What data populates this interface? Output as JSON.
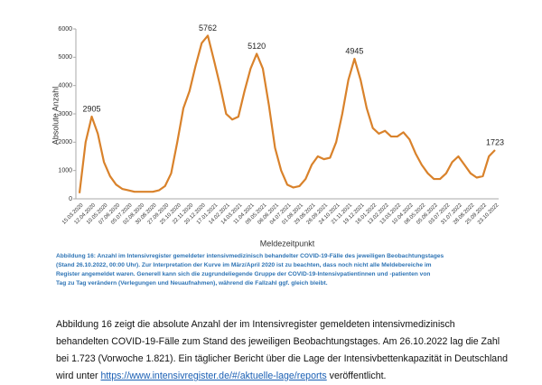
{
  "chart_data": {
    "type": "line",
    "y_label": "Absolute Anzahl",
    "x_label": "Meldezeitpunkt",
    "categories": [
      "15.03.2020",
      null,
      "12.04.2020",
      null,
      "10.05.2020",
      null,
      "07.06.2020",
      null,
      "05.07.2020",
      null,
      "02.08.2020",
      null,
      "30.08.2020",
      null,
      "27.09.2020",
      null,
      "25.10.2020",
      null,
      "22.11.2020",
      null,
      "20.12.2020",
      null,
      "17.01.2021",
      null,
      "14.02.2021",
      null,
      "14.03.2021",
      null,
      "11.04.2021",
      null,
      "09.05.2021",
      null,
      "06.06.2021",
      null,
      "04.07.2021",
      null,
      "01.08.2021",
      null,
      "29.08.2021",
      null,
      "26.09.2021",
      null,
      "24.10.2021",
      null,
      "21.11.2021",
      null,
      "19.12.2021",
      null,
      "16.01.2022",
      null,
      "13.02.2022",
      null,
      "13.03.2022",
      null,
      "10.04.2022",
      null,
      "08.05.2022",
      null,
      "05.06.2022",
      null,
      "03.07.2022",
      null,
      "31.07.2022",
      null,
      "28.08.2022",
      null,
      "25.09.2022",
      null,
      "23.10.2022"
    ],
    "values": [
      200,
      2000,
      2905,
      2300,
      1300,
      800,
      500,
      350,
      300,
      250,
      250,
      250,
      250,
      300,
      450,
      900,
      2000,
      3200,
      3800,
      4700,
      5500,
      5762,
      4900,
      4000,
      3000,
      2800,
      2900,
      3800,
      4600,
      5120,
      4600,
      3300,
      1800,
      1000,
      500,
      400,
      450,
      700,
      1200,
      1500,
      1400,
      1450,
      2000,
      3000,
      4200,
      4945,
      4200,
      3200,
      2500,
      2300,
      2400,
      2200,
      2200,
      2350,
      2100,
      1600,
      1200,
      900,
      700,
      700,
      900,
      1300,
      1500,
      1200,
      900,
      750,
      800,
      1500,
      1723
    ],
    "value_labels": [
      null,
      null,
      "2905",
      null,
      null,
      null,
      null,
      null,
      null,
      null,
      null,
      null,
      null,
      null,
      null,
      null,
      null,
      null,
      null,
      null,
      null,
      "5762",
      null,
      null,
      null,
      null,
      null,
      null,
      null,
      "5120",
      null,
      null,
      null,
      null,
      null,
      null,
      null,
      null,
      null,
      null,
      null,
      null,
      null,
      null,
      null,
      "4945",
      null,
      null,
      null,
      null,
      null,
      null,
      null,
      null,
      null,
      null,
      null,
      null,
      null,
      null,
      null,
      null,
      null,
      null,
      null,
      null,
      null,
      null,
      "1723"
    ],
    "color": "#d9822b",
    "ylim": [
      0,
      6000
    ],
    "yticks": [
      0,
      1000,
      2000,
      3000,
      4000,
      5000,
      6000
    ],
    "grid": false
  },
  "caption": [
    "Abbildung 16: Anzahl im Intensivregister gemeldeter intensivmedizinisch behandelter COVID-19-Fälle des jeweiligen Beobachtungstages",
    "(Stand 26.10.2022, 00:00 Uhr). Zur Interpretation der Kurve im März/April 2020 ist zu beachten, dass noch nicht alle Meldebereiche im",
    "Register angemeldet waren. Generell kann sich die zugrundeliegende Gruppe der COVID-19-Intensivpatientinnen und -patienten von",
    "Tag zu Tag verändern (Verlegungen und Neuaufnahmen), während die Fallzahl ggf. gleich bleibt."
  ],
  "paragraph": {
    "text": "Abbildung 16 zeigt die absolute Anzahl der im Intensivregister gemeldeten intensivmedizinisch behandelten COVID-19-Fälle zum Stand des jeweiligen Beobachtungstages. Am 26.10.2022 lag die Zahl bei 1.723 (Vorwoche 1.821). Ein täglicher Bericht über die Lage der Intensivbettenkapazität in Deutschland wird unter ",
    "link": "https://www.intensivregister.de/#/aktuelle-lage/reports",
    "text_after": " veröffentlicht."
  }
}
